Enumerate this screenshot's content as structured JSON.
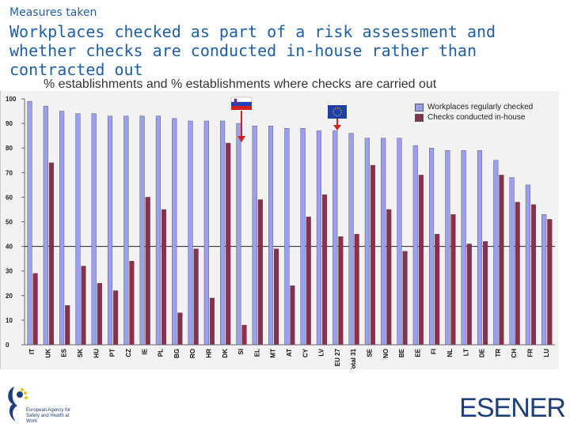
{
  "header": {
    "subtitle": "Measures taken",
    "title": "Workplaces checked as part of a risk assessment and whether checks are conducted in-house rather than contracted out"
  },
  "colors": {
    "series1": "#9b9ff0",
    "series2": "#8c2f4f",
    "title": "#1f5fa6"
  },
  "chart_data": {
    "type": "bar",
    "title": "% establishments and % establishments where checks are carried out",
    "ylim": [
      0,
      100
    ],
    "yticks": [
      0,
      10,
      20,
      30,
      40,
      50,
      60,
      70,
      80,
      90,
      100
    ],
    "categories": [
      "IT",
      "UK",
      "ES",
      "SK",
      "HU",
      "PT",
      "CZ",
      "IE",
      "PL",
      "BG",
      "RO",
      "HR",
      "DK",
      "SI",
      "EL",
      "MT",
      "AT",
      "CY",
      "LV",
      "EU 27",
      "Total 31",
      "SE",
      "NO",
      "BE",
      "EE",
      "FI",
      "NL",
      "LT",
      "DE",
      "TR",
      "CH",
      "FR",
      "LU"
    ],
    "series": [
      {
        "name": "Workplaces regularly checked",
        "values": [
          99,
          97,
          95,
          94,
          94,
          93,
          93,
          93,
          93,
          92,
          91,
          91,
          91,
          90,
          89,
          89,
          88,
          88,
          87,
          87,
          86,
          84,
          84,
          84,
          81,
          80,
          79,
          79,
          79,
          75,
          68,
          65,
          53
        ]
      },
      {
        "name": "Checks conducted in-house",
        "values": [
          29,
          74,
          16,
          32,
          25,
          22,
          34,
          60,
          55,
          13,
          39,
          19,
          82,
          8,
          59,
          39,
          24,
          52,
          61,
          44,
          45,
          73,
          55,
          38,
          69,
          45,
          53,
          41,
          42,
          69,
          58,
          57,
          51
        ]
      }
    ],
    "annotations": [
      "SI",
      "EU 27"
    ]
  },
  "footer": {
    "agency_logo_text": "European Agency for Safety and Health at Work",
    "esener_logo": "ESENER"
  }
}
